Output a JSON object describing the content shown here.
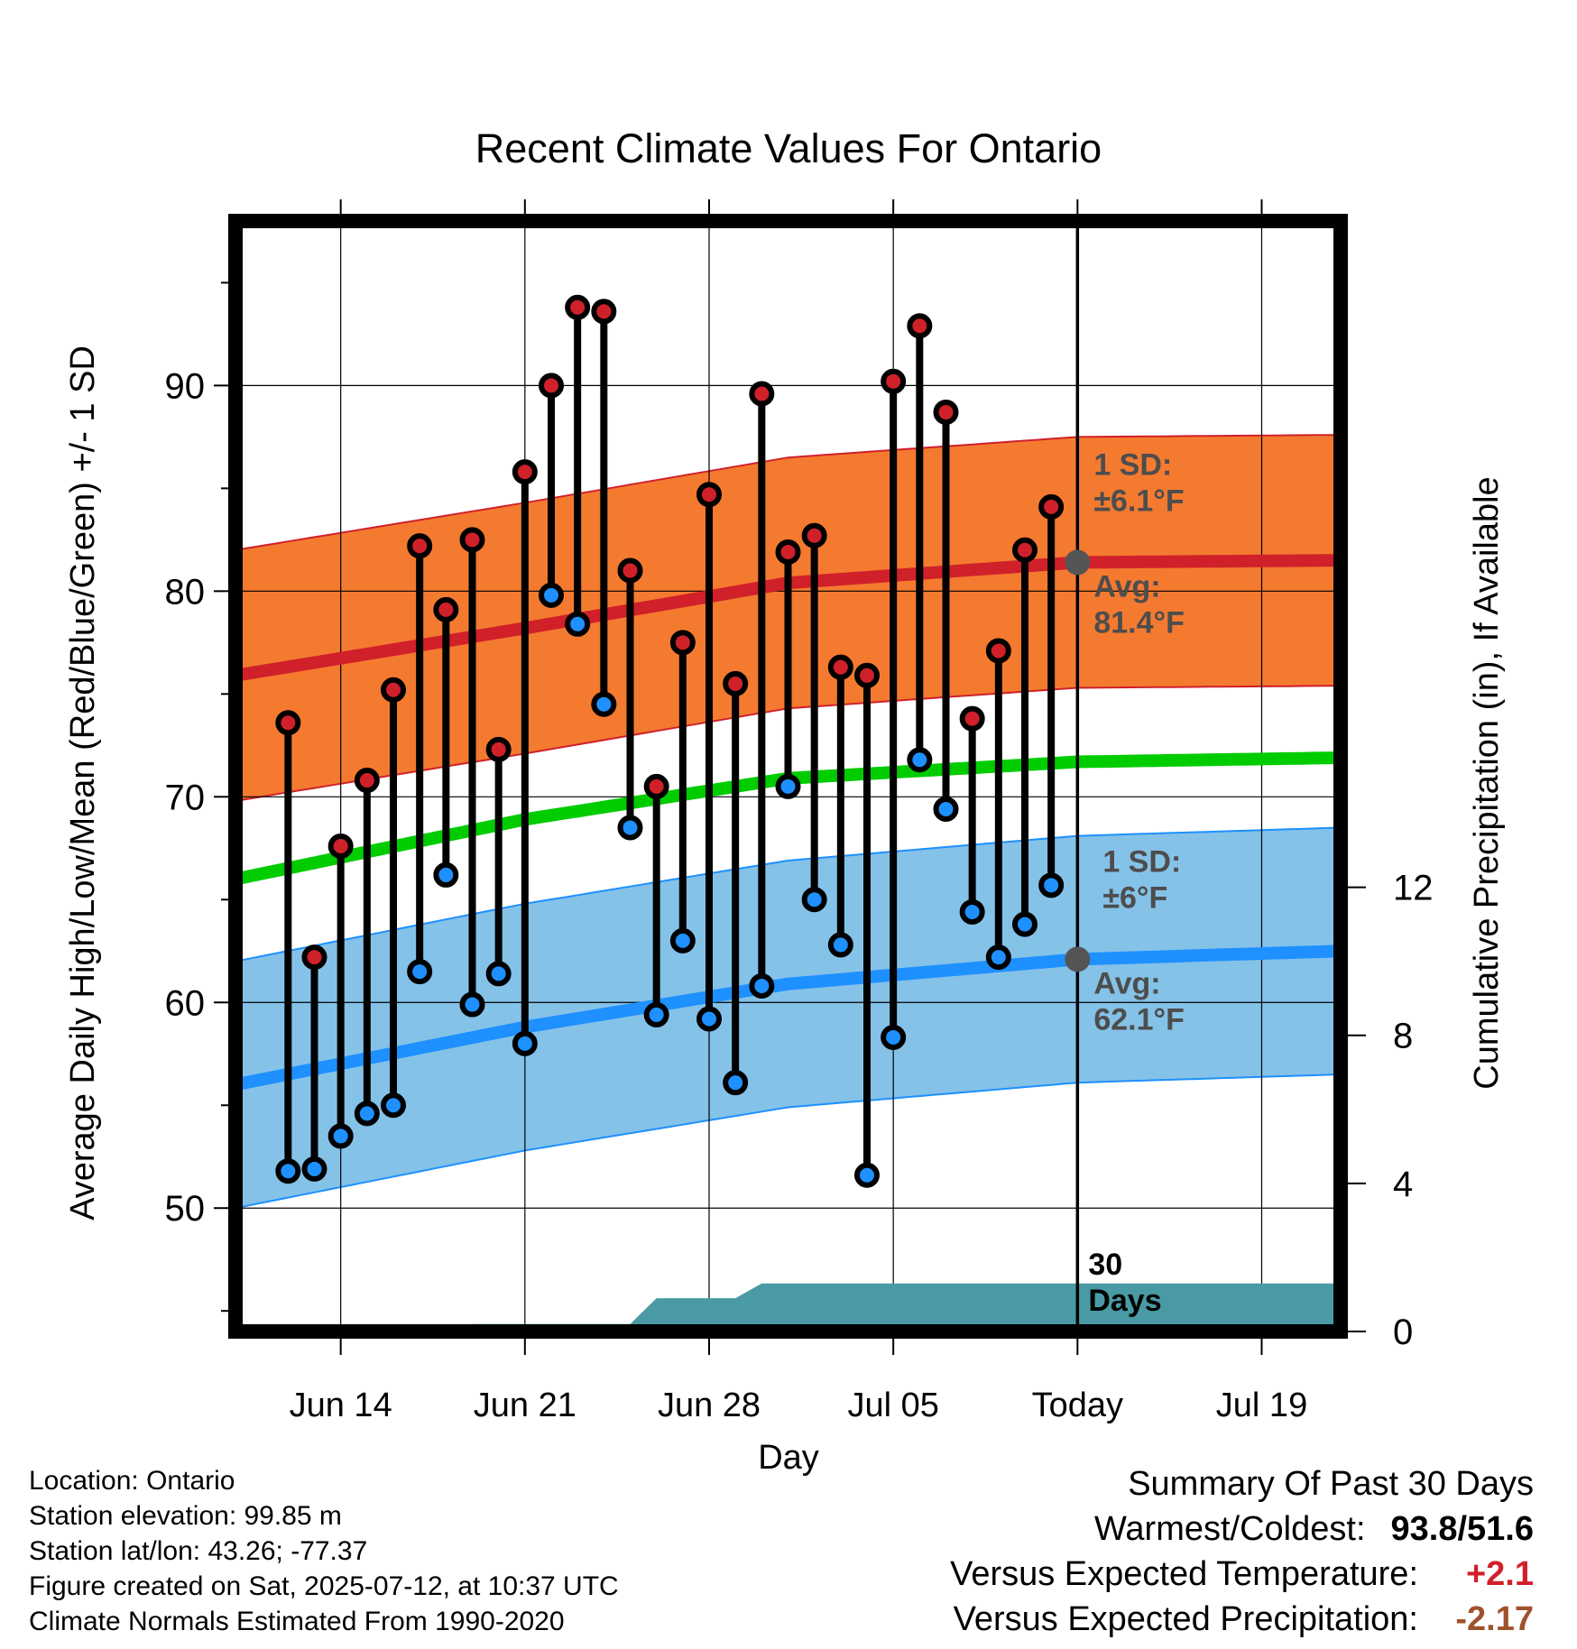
{
  "chart_data": {
    "type": "line",
    "title": "Recent Climate Values For Ontario",
    "xlabel": "Day",
    "ylabel": "Average Daily High/Low/Mean (Red/Blue/Green) +/- 1 SD",
    "y2label": "Cumulative Precipitation (in), If Available",
    "ylim": [
      44,
      98
    ],
    "y_ticks": [
      50,
      60,
      70,
      80,
      90
    ],
    "y2lim": [
      0,
      30
    ],
    "y2_ticks": [
      0,
      4,
      8,
      12
    ],
    "x_range": [
      "Jun 10",
      "Jul 22"
    ],
    "x_ticks": [
      {
        "date": "Jun 14",
        "label": "Jun 14"
      },
      {
        "date": "Jun 21",
        "label": "Jun 21"
      },
      {
        "date": "Jun 28",
        "label": "Jun 28"
      },
      {
        "date": "Jul 05",
        "label": "Jul 05"
      },
      {
        "date": "Jul 12",
        "label": "Today"
      },
      {
        "date": "Jul 19",
        "label": "Jul 19"
      }
    ],
    "grid": true,
    "today": "Jul 12",
    "today_label": "30\nDays",
    "series": [
      {
        "name": "High",
        "color": "#d0202a",
        "x": [
          "Jun 12",
          "Jun 13",
          "Jun 14",
          "Jun 15",
          "Jun 16",
          "Jun 17",
          "Jun 18",
          "Jun 19",
          "Jun 20",
          "Jun 21",
          "Jun 22",
          "Jun 23",
          "Jun 24",
          "Jun 25",
          "Jun 26",
          "Jun 27",
          "Jun 28",
          "Jun 29",
          "Jun 30",
          "Jul 01",
          "Jul 02",
          "Jul 03",
          "Jul 04",
          "Jul 05",
          "Jul 06",
          "Jul 07",
          "Jul 08",
          "Jul 09",
          "Jul 10",
          "Jul 11"
        ],
        "values": [
          73.6,
          62.2,
          67.6,
          70.8,
          75.2,
          82.2,
          79.1,
          82.5,
          72.3,
          85.8,
          90.0,
          93.8,
          93.6,
          81.0,
          70.5,
          77.5,
          84.7,
          75.5,
          89.6,
          81.9,
          82.7,
          76.3,
          75.9,
          90.2,
          92.9,
          88.7,
          73.8,
          77.1,
          82.0,
          84.1
        ]
      },
      {
        "name": "Low",
        "color": "#1e90ff",
        "x": [
          "Jun 12",
          "Jun 13",
          "Jun 14",
          "Jun 15",
          "Jun 16",
          "Jun 17",
          "Jun 18",
          "Jun 19",
          "Jun 20",
          "Jun 21",
          "Jun 22",
          "Jun 23",
          "Jun 24",
          "Jun 25",
          "Jun 26",
          "Jun 27",
          "Jun 28",
          "Jun 29",
          "Jun 30",
          "Jul 01",
          "Jul 02",
          "Jul 03",
          "Jul 04",
          "Jul 05",
          "Jul 06",
          "Jul 07",
          "Jul 08",
          "Jul 09",
          "Jul 10",
          "Jul 11"
        ],
        "values": [
          51.8,
          51.9,
          53.5,
          54.6,
          55.0,
          61.5,
          66.2,
          59.9,
          61.4,
          58.0,
          79.8,
          78.4,
          74.5,
          68.5,
          59.4,
          63.0,
          59.2,
          56.1,
          60.8,
          70.5,
          65.0,
          62.8,
          51.6,
          58.3,
          71.8,
          69.4,
          64.4,
          62.2,
          63.8,
          65.7
        ]
      }
    ],
    "normals": {
      "x": [
        "Jun 10",
        "Jun 21",
        "Jul 01",
        "Jul 12",
        "Jul 22"
      ],
      "high_avg": [
        75.9,
        78.2,
        80.4,
        81.4,
        81.5
      ],
      "high_sd": 6.1,
      "mean_avg": [
        66.0,
        68.9,
        70.9,
        71.7,
        71.9
      ],
      "low_avg": [
        56.0,
        58.8,
        60.9,
        62.1,
        62.5
      ],
      "low_sd": 6.0
    },
    "annotations": {
      "high_sd_label": "1 SD:",
      "high_sd_value": "±6.1°F",
      "high_avg_label": "Avg:",
      "high_avg_value": "81.4°F",
      "low_sd_label": "1 SD:",
      "low_sd_value": "±6°F",
      "low_avg_label": "Avg:",
      "low_avg_value": "62.1°F"
    },
    "precipitation": {
      "name": "Cumulative Precipitation",
      "color": "#4a9aa5",
      "x": [
        "Jun 12",
        "Jun 18",
        "Jun 19",
        "Jun 25",
        "Jun 26",
        "Jun 29",
        "Jun 30",
        "Jul 22"
      ],
      "values": [
        0.0,
        0.0,
        0.2,
        0.2,
        0.9,
        0.9,
        1.3,
        1.3
      ]
    },
    "colors": {
      "high_band": "#f47a30",
      "high_line": "#d0202a",
      "mean_line": "#00cc00",
      "low_band": "#85c2e8",
      "low_line": "#1e90ff",
      "today_marker": "#555555"
    }
  },
  "footer": {
    "location": "Location: Ontario",
    "elevation": "Station elevation: 99.85 m",
    "latlon": "Station lat/lon: 43.26; -77.37",
    "created": "Figure created on Sat, 2025-07-12, at 10:37 UTC",
    "normals": "Climate Normals Estimated From 1990-2020"
  },
  "summary": {
    "title": "Summary Of Past 30 Days",
    "warm_cold_label": "Warmest/Coldest:",
    "warm_cold_value": "93.8/51.6",
    "temp_label": "Versus Expected Temperature:",
    "temp_value": "+2.1",
    "precip_label": "Versus Expected Precipitation:",
    "precip_value": "-2.17"
  }
}
